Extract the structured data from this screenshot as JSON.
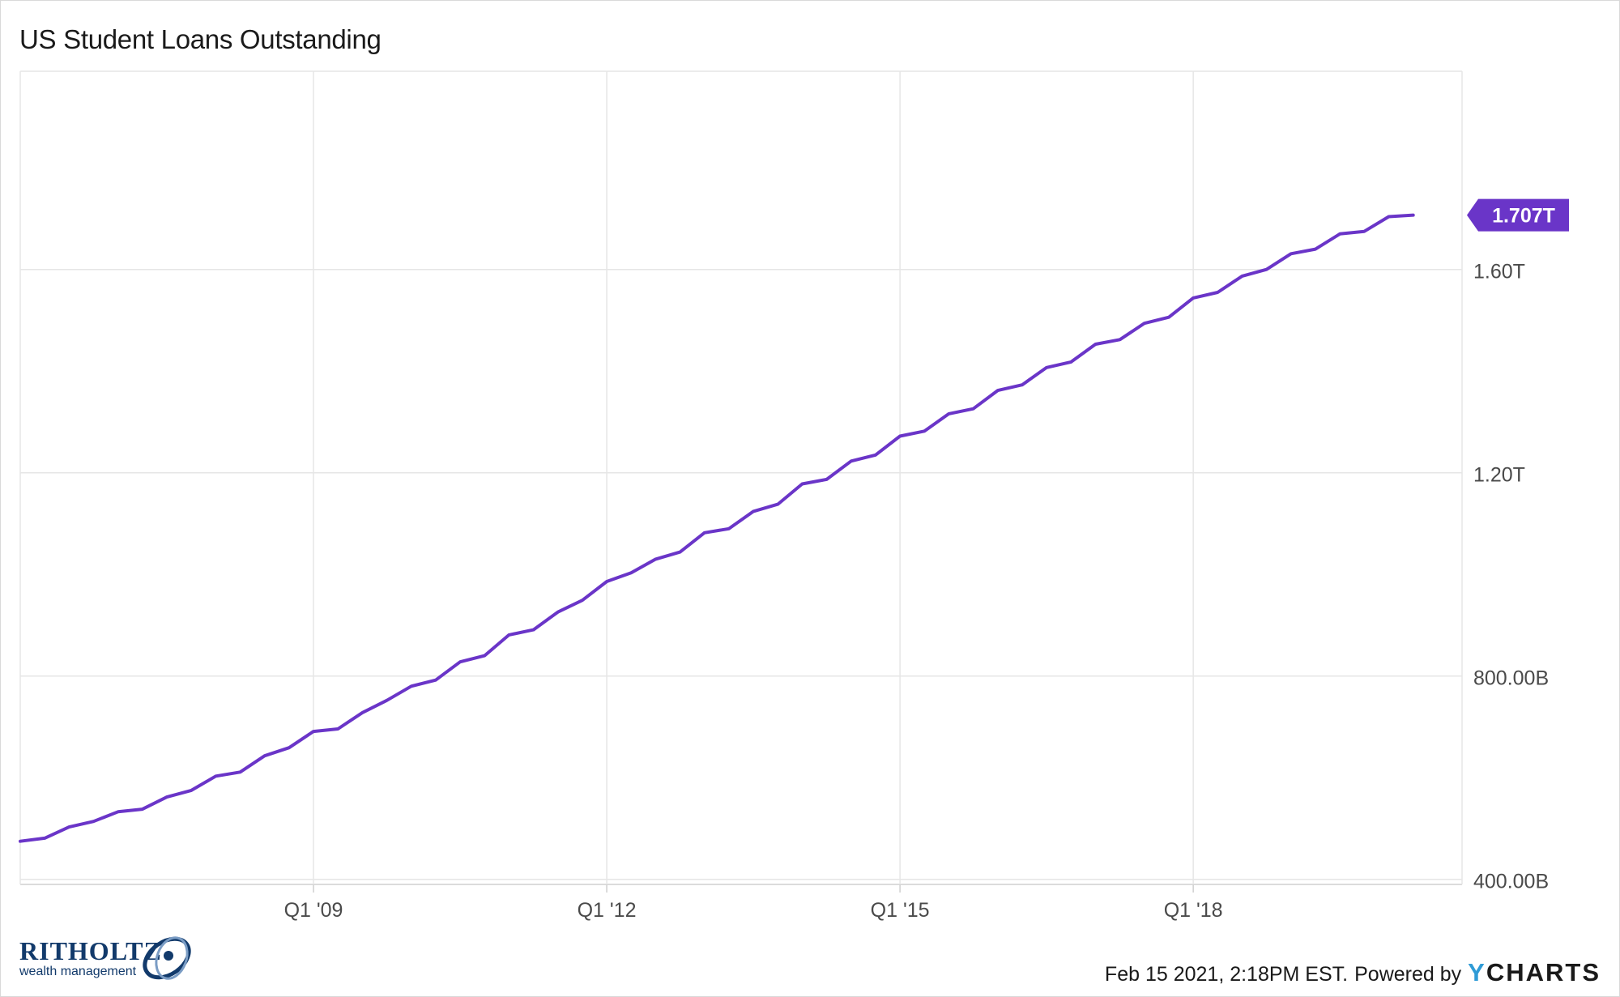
{
  "header": {
    "title": "US Student Loans Outstanding"
  },
  "footer": {
    "timestamp": "Feb 15 2021, 2:18PM EST.",
    "powered_by": "Powered by",
    "provider_y": "Y",
    "provider_rest": "CHARTS"
  },
  "brand": {
    "name": "RITHOLTZ",
    "tagline": "wealth management"
  },
  "colors": {
    "line": "#6a35c8",
    "grid": "#e6e6e6",
    "axis_text": "#4a4a4a",
    "badge_bg": "#6a35c8",
    "badge_text": "#ffffff"
  },
  "chart_data": {
    "type": "line",
    "title": "US Student Loans Outstanding",
    "xlabel": "",
    "ylabel": "",
    "x_tick_labels": [
      "Q1 '09",
      "Q1 '12",
      "Q1 '15",
      "Q1 '18"
    ],
    "x_tick_positions": [
      2009.0,
      2012.0,
      2015.0,
      2018.0
    ],
    "y_tick_labels": [
      "400.00B",
      "800.00B",
      "1.20T",
      "1.60T"
    ],
    "y_tick_values": [
      400,
      800,
      1200,
      1600
    ],
    "xlim": [
      2006.0,
      2020.75
    ],
    "ylim": [
      390,
      1990
    ],
    "y_unit": "billions of USD",
    "grid": true,
    "last_value_label": "1.707T",
    "series": [
      {
        "values": [
          [
            2006.0,
            475
          ],
          [
            2006.25,
            481
          ],
          [
            2006.5,
            503
          ],
          [
            2006.75,
            514
          ],
          [
            2007.0,
            533
          ],
          [
            2007.25,
            538
          ],
          [
            2007.5,
            562
          ],
          [
            2007.75,
            575
          ],
          [
            2008.0,
            603
          ],
          [
            2008.25,
            611
          ],
          [
            2008.5,
            643
          ],
          [
            2008.75,
            659
          ],
          [
            2009.0,
            691
          ],
          [
            2009.25,
            696
          ],
          [
            2009.5,
            728
          ],
          [
            2009.75,
            752
          ],
          [
            2010.0,
            780
          ],
          [
            2010.25,
            792
          ],
          [
            2010.5,
            828
          ],
          [
            2010.75,
            840
          ],
          [
            2011.0,
            881
          ],
          [
            2011.25,
            891
          ],
          [
            2011.5,
            926
          ],
          [
            2011.75,
            949
          ],
          [
            2012.0,
            986
          ],
          [
            2012.25,
            1003
          ],
          [
            2012.5,
            1030
          ],
          [
            2012.75,
            1044
          ],
          [
            2013.0,
            1082
          ],
          [
            2013.25,
            1090
          ],
          [
            2013.5,
            1124
          ],
          [
            2013.75,
            1138
          ],
          [
            2014.0,
            1178
          ],
          [
            2014.25,
            1187
          ],
          [
            2014.5,
            1223
          ],
          [
            2014.75,
            1235
          ],
          [
            2015.0,
            1272
          ],
          [
            2015.25,
            1282
          ],
          [
            2015.5,
            1316
          ],
          [
            2015.75,
            1326
          ],
          [
            2016.0,
            1362
          ],
          [
            2016.25,
            1373
          ],
          [
            2016.5,
            1407
          ],
          [
            2016.75,
            1418
          ],
          [
            2017.0,
            1453
          ],
          [
            2017.25,
            1462
          ],
          [
            2017.5,
            1494
          ],
          [
            2017.75,
            1506
          ],
          [
            2018.0,
            1544
          ],
          [
            2018.25,
            1555
          ],
          [
            2018.5,
            1587
          ],
          [
            2018.75,
            1600
          ],
          [
            2019.0,
            1631
          ],
          [
            2019.25,
            1640
          ],
          [
            2019.5,
            1670
          ],
          [
            2019.75,
            1675
          ],
          [
            2020.0,
            1704
          ],
          [
            2020.25,
            1707
          ]
        ]
      }
    ]
  }
}
